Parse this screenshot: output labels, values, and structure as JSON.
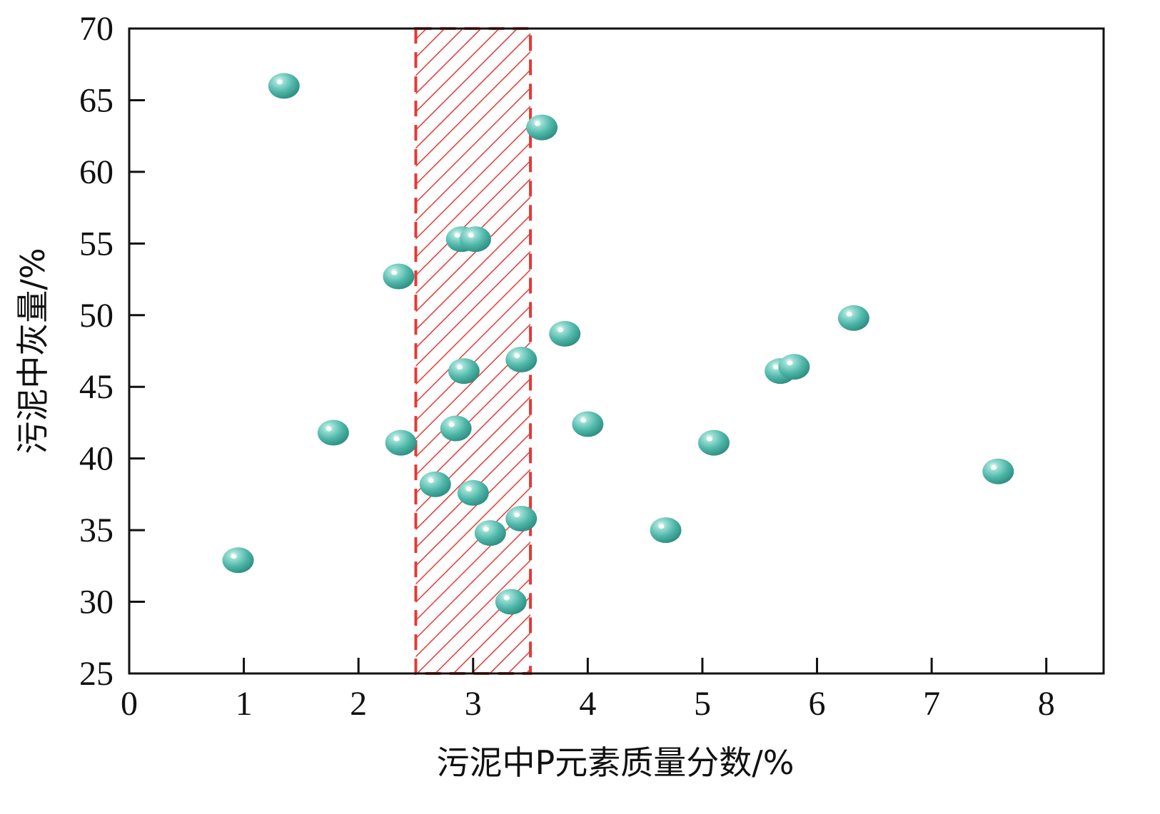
{
  "chart_data": {
    "type": "scatter",
    "xlabel": "污泥中P元素质量分数/%",
    "ylabel": "污泥中灰量/%",
    "xlim": [
      0,
      8.5
    ],
    "ylim": [
      25,
      70
    ],
    "x_ticks": [
      0,
      1,
      2,
      3,
      4,
      5,
      6,
      7,
      8
    ],
    "y_ticks": [
      25,
      30,
      35,
      40,
      45,
      50,
      55,
      60,
      65,
      70
    ],
    "grid": false,
    "highlight_band": {
      "x_range": [
        2.5,
        3.5
      ],
      "style": "red hatched, dashed border"
    },
    "series": [
      {
        "color": "#4db6a8",
        "points": [
          {
            "x": 0.95,
            "y": 32.9
          },
          {
            "x": 1.35,
            "y": 66.0
          },
          {
            "x": 1.78,
            "y": 41.8
          },
          {
            "x": 2.35,
            "y": 52.7
          },
          {
            "x": 2.37,
            "y": 41.1
          },
          {
            "x": 2.67,
            "y": 38.2
          },
          {
            "x": 2.85,
            "y": 42.1
          },
          {
            "x": 2.92,
            "y": 46.1
          },
          {
            "x": 2.9,
            "y": 55.3
          },
          {
            "x": 3.02,
            "y": 55.3
          },
          {
            "x": 3.0,
            "y": 37.6
          },
          {
            "x": 3.15,
            "y": 34.8
          },
          {
            "x": 3.33,
            "y": 30.0
          },
          {
            "x": 3.42,
            "y": 35.8
          },
          {
            "x": 3.42,
            "y": 46.9
          },
          {
            "x": 3.6,
            "y": 63.1
          },
          {
            "x": 3.8,
            "y": 48.7
          },
          {
            "x": 4.0,
            "y": 42.4
          },
          {
            "x": 4.68,
            "y": 35.0
          },
          {
            "x": 5.1,
            "y": 41.1
          },
          {
            "x": 5.68,
            "y": 46.1
          },
          {
            "x": 5.8,
            "y": 46.4
          },
          {
            "x": 6.32,
            "y": 49.8
          },
          {
            "x": 7.58,
            "y": 39.1
          }
        ]
      }
    ]
  }
}
